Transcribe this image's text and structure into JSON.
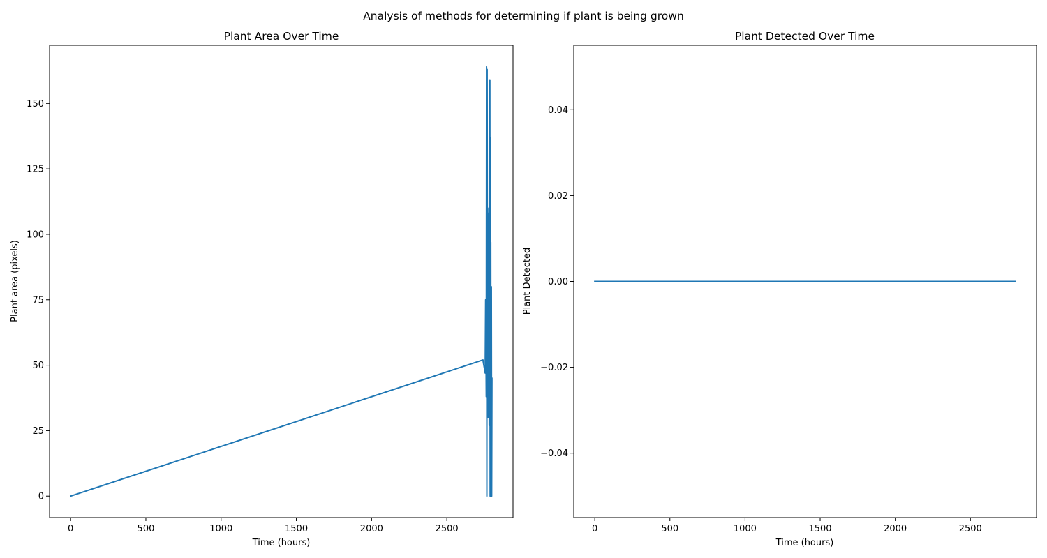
{
  "figure": {
    "suptitle": "Analysis of methods for determining if plant is being grown"
  },
  "chart_data": [
    {
      "type": "line",
      "title": "Plant Area Over Time",
      "xlabel": "Time (hours)",
      "ylabel": "Plant area (pixels)",
      "xlim": [
        -140,
        2940
      ],
      "ylim": [
        -8.2,
        172.2
      ],
      "xticks": [
        0,
        500,
        1000,
        1500,
        2000,
        2500
      ],
      "xtick_labels": [
        "0",
        "500",
        "1000",
        "1500",
        "2000",
        "2500"
      ],
      "yticks": [
        0,
        25,
        50,
        75,
        100,
        125,
        150
      ],
      "ytick_labels": [
        "0",
        "25",
        "50",
        "75",
        "100",
        "125",
        "150"
      ],
      "color": "#1f77b4",
      "series": [
        {
          "name": "plant_area",
          "x": [
            0,
            2740,
            2755,
            2758,
            2762,
            2764,
            2766,
            2768,
            2770,
            2772,
            2775,
            2777,
            2779,
            2780,
            2782,
            2784,
            2786,
            2788,
            2790,
            2791,
            2792,
            2794,
            2796,
            2798,
            2800
          ],
          "y": [
            0,
            52,
            47,
            75,
            38,
            164,
            0,
            163,
            52,
            110,
            30,
            108,
            60,
            95,
            27,
            85,
            159,
            0,
            137,
            60,
            97,
            0,
            80,
            0,
            45
          ]
        }
      ]
    },
    {
      "type": "line",
      "title": "Plant Detected Over Time",
      "xlabel": "Time (hours)",
      "ylabel": "Plant Detected",
      "xlim": [
        -140,
        2940
      ],
      "ylim": [
        -0.055,
        0.055
      ],
      "xticks": [
        0,
        500,
        1000,
        1500,
        2000,
        2500
      ],
      "xtick_labels": [
        "0",
        "500",
        "1000",
        "1500",
        "2000",
        "2500"
      ],
      "yticks": [
        -0.04,
        -0.02,
        0.0,
        0.02,
        0.04
      ],
      "ytick_labels": [
        "−0.04",
        "−0.02",
        "0.00",
        "0.02",
        "0.04"
      ],
      "color": "#1f77b4",
      "series": [
        {
          "name": "plant_detected",
          "x": [
            0,
            2800
          ],
          "y": [
            0,
            0
          ]
        }
      ]
    }
  ]
}
